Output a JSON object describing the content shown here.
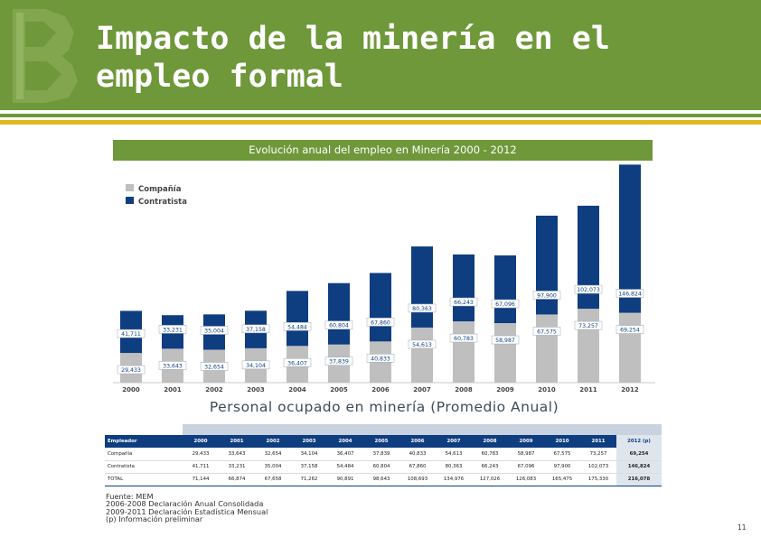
{
  "slide": {
    "title_line1": "Impacto de la minería en el",
    "title_line2": "empleo formal",
    "page_number": "11",
    "colors": {
      "header_green": "#6f983a",
      "accent_yellow": "#e0b81e",
      "navy": "#0e3d80",
      "gray": "#bfbfbf"
    }
  },
  "chart_banner": "Evolución anual del empleo en Minería 2000 - 2012",
  "chart_data": {
    "type": "bar",
    "stacked": true,
    "title": "Evolución anual del empleo en Minería 2000 - 2012",
    "categories": [
      "2000",
      "2001",
      "2002",
      "2003",
      "2004",
      "2005",
      "2006",
      "2007",
      "2008",
      "2009",
      "2010",
      "2011",
      "2012"
    ],
    "series": [
      {
        "name": "Compañía",
        "color": "#bfbfbf",
        "values": [
          29433,
          33643,
          32654,
          34104,
          36407,
          37839,
          40833,
          54613,
          60783,
          58987,
          67575,
          73257,
          69254
        ],
        "labels": [
          "29,433",
          "33,643",
          "32,654",
          "34,104",
          "36,407",
          "37,839",
          "40,833",
          "54,613",
          "60,783",
          "58,987",
          "67,575",
          "73,257",
          "69,254"
        ]
      },
      {
        "name": "Contratista",
        "color": "#0e3d80",
        "values": [
          41711,
          33231,
          35004,
          37158,
          54484,
          60804,
          67860,
          80363,
          66243,
          67096,
          97900,
          102073,
          146824
        ],
        "labels": [
          "41,711",
          "33,231",
          "35,004",
          "37,158",
          "54,484",
          "60,804",
          "67,860",
          "80,363",
          "66,243",
          "67,096",
          "97,900",
          "102,073",
          "146,824"
        ]
      }
    ],
    "legend_position": "top-left",
    "ylim": [
      0,
      220000
    ],
    "grid": false
  },
  "chart_subtitle": "Personal ocupado en minería (Promedio Anual)",
  "table": {
    "headers": [
      "Empleador",
      "2000",
      "2001",
      "2002",
      "2003",
      "2004",
      "2005",
      "2006",
      "2007",
      "2008",
      "2009",
      "2010",
      "2011",
      "2012 (p)"
    ],
    "rows": [
      [
        "Compañía",
        "29,433",
        "33,643",
        "32,654",
        "34,104",
        "36,407",
        "37,839",
        "40,833",
        "54,613",
        "60,783",
        "58,987",
        "67,575",
        "73,257",
        "69,254"
      ],
      [
        "Contratista",
        "41,711",
        "33,231",
        "35,004",
        "37,158",
        "54,484",
        "60,804",
        "67,860",
        "80,363",
        "66,243",
        "67,096",
        "97,900",
        "102,073",
        "146,824"
      ],
      [
        "TOTAL",
        "71,144",
        "66,874",
        "67,658",
        "71,262",
        "90,891",
        "98,643",
        "108,693",
        "134,976",
        "127,026",
        "126,083",
        "165,475",
        "175,330",
        "216,078"
      ]
    ]
  },
  "source": [
    "Fuente: MEM",
    "2006-2008 Declaración Anual Consolidada",
    "2009-2011 Declaración Estadística Mensual",
    "(p) Información preliminar"
  ]
}
